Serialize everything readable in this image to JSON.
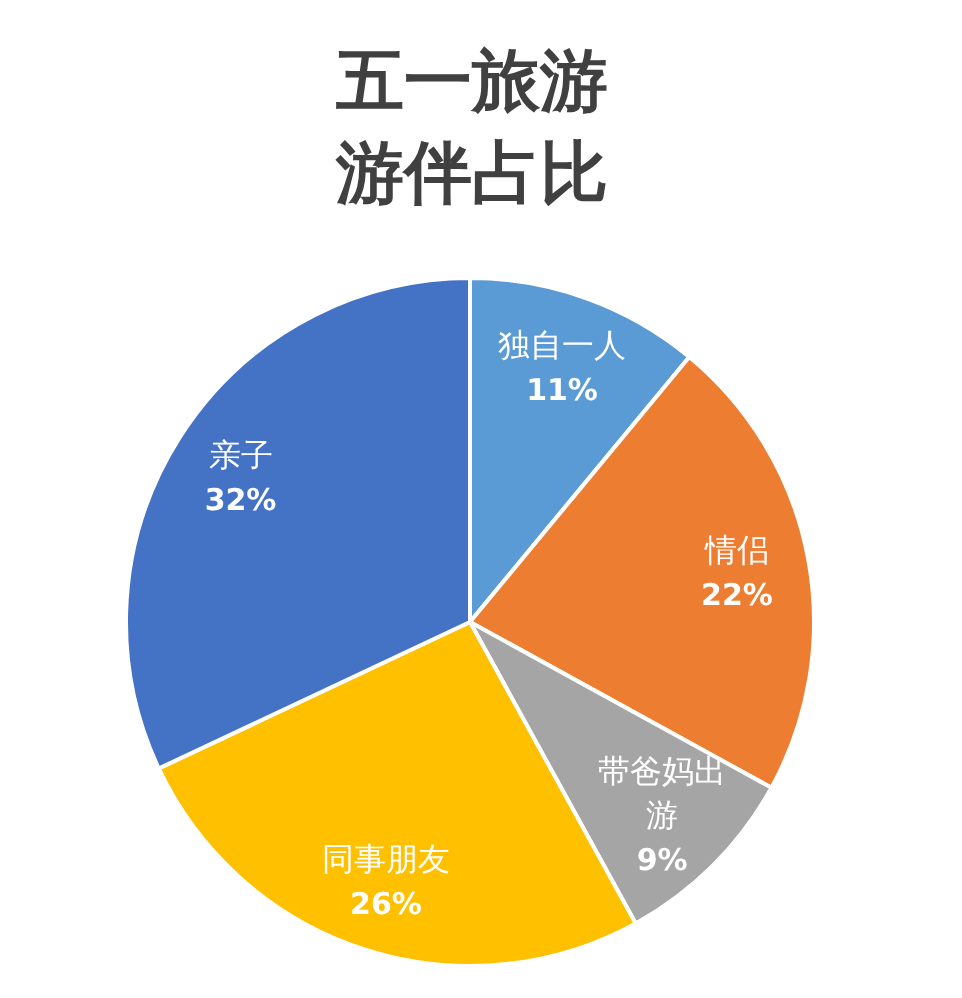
{
  "chart_data": {
    "type": "pie",
    "title": "五一旅游游伴占比",
    "categories": [
      "独自一人",
      "情侣",
      "带爸妈出游",
      "同事朋友",
      "亲子"
    ],
    "values": [
      11,
      22,
      9,
      26,
      32
    ],
    "colors": [
      "#5b9bd5",
      "#ed7d31",
      "#a5a5a5",
      "#ffc000",
      "#4472c4"
    ],
    "value_labels": [
      "11%",
      "22%",
      "9%",
      "26%",
      "32%"
    ]
  }
}
